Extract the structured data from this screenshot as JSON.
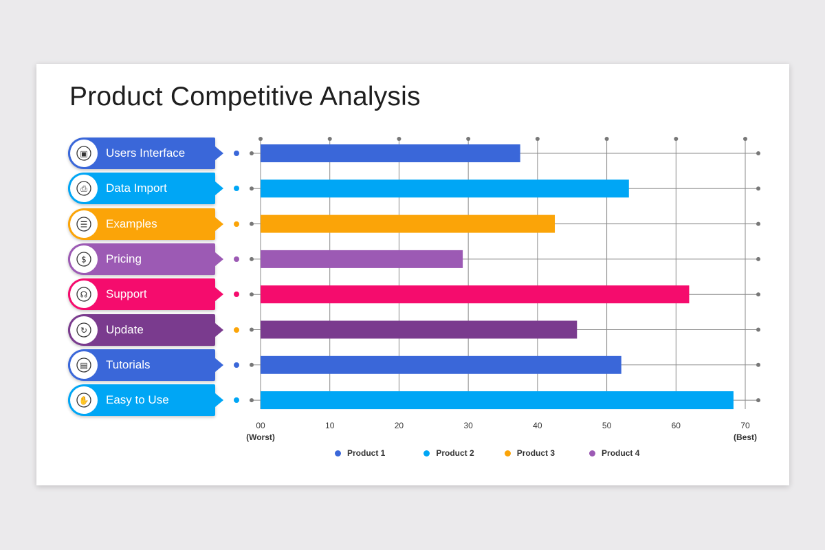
{
  "title": "Product Competitive Analysis",
  "chart_data": {
    "type": "bar",
    "orientation": "horizontal",
    "title": "Product Competitive Analysis",
    "categories": [
      "Users Interface",
      "Data Import",
      "Examples",
      "Pricing",
      "Support",
      "Update",
      "Tutorials",
      "Easy to Use"
    ],
    "values": [
      37.5,
      53.2,
      42.5,
      29.2,
      61.9,
      45.7,
      52.1,
      68.3
    ],
    "bar_colors": [
      "#3a67d9",
      "#00a6f5",
      "#fba408",
      "#9c5ab4",
      "#f50c6d",
      "#7a3b8e",
      "#3a67d9",
      "#00a6f5"
    ],
    "dot_colors": [
      "#3a67d9",
      "#00a6f5",
      "#fba408",
      "#9c5ab4",
      "#f50c6d",
      "#fba408",
      "#3a67d9",
      "#00a6f5"
    ],
    "icons": [
      "interface-icon",
      "data-import-icon",
      "examples-icon",
      "pricing-icon",
      "support-icon",
      "update-icon",
      "tutorials-icon",
      "easy-use-icon"
    ],
    "xlim": [
      0,
      70
    ],
    "xticks": [
      "00",
      "10",
      "20",
      "30",
      "40",
      "50",
      "60",
      "70"
    ],
    "xtick_sublabels": {
      "min": "(Worst)",
      "max": "(Best)"
    },
    "grid": true,
    "legend": [
      {
        "label": "Product 1",
        "color": "#3a67d9"
      },
      {
        "label": "Product 2",
        "color": "#00a6f5"
      },
      {
        "label": "Product 3",
        "color": "#fba408"
      },
      {
        "label": "Product 4",
        "color": "#9c5ab4"
      }
    ]
  }
}
